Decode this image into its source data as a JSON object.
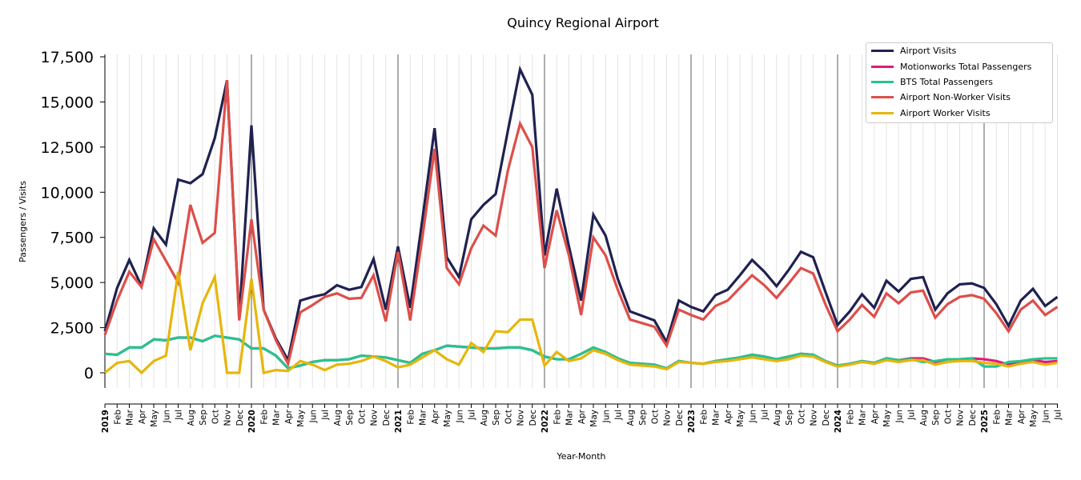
{
  "chart_data": {
    "type": "line",
    "title": "Quincy Regional Airport",
    "xlabel": "Year-Month",
    "ylabel": "Passengers / Visits",
    "ylim": [
      -1800,
      17700
    ],
    "yticks": [
      0,
      2500,
      5000,
      7500,
      10000,
      12500,
      15000,
      17500
    ],
    "ytick_labels": [
      "0",
      "2,500",
      "5,000",
      "7,500",
      "10,000",
      "12,500",
      "15,000",
      "17,500"
    ],
    "start": "2019-01",
    "month_labels": [
      "Jan",
      "Feb",
      "Mar",
      "Apr",
      "May",
      "Jun",
      "Jul",
      "Aug",
      "Sep",
      "Oct",
      "Nov",
      "Dec"
    ],
    "years": [
      "2019",
      "2020",
      "2021",
      "2022",
      "2023",
      "2024",
      "2025"
    ],
    "n_months": 79,
    "legend_position": "top-right",
    "series": [
      {
        "name": "Airport Visits",
        "color": "#1f2150",
        "values": [
          2300,
          4700,
          6250,
          4800,
          8000,
          7100,
          10700,
          10500,
          11000,
          13000,
          16200,
          3000,
          13700,
          3500,
          1900,
          700,
          4000,
          4200,
          4350,
          4850,
          4600,
          4750,
          6300,
          3500,
          7000,
          3600,
          8500,
          13550,
          6400,
          5300,
          8500,
          9300,
          9900,
          13400,
          16800,
          15400,
          6500,
          10200,
          7000,
          4000,
          8750,
          7600,
          5200,
          3400,
          3150,
          2900,
          1700,
          4000,
          3650,
          3400,
          4300,
          4600,
          5400,
          6250,
          5600,
          4800,
          5700,
          6700,
          6400,
          4500,
          2650,
          3400,
          4350,
          3600,
          5100,
          4500,
          5200,
          5300,
          3500,
          4400,
          4900,
          4950,
          4700,
          3800,
          2600,
          4000,
          4650,
          3700,
          4200
        ]
      },
      {
        "name": "Motionworks Total Passengers",
        "color": "#e0197d",
        "values": [
          1050,
          1000,
          1400,
          1400,
          1850,
          1800,
          1950,
          1950,
          1750,
          2050,
          1950,
          1850,
          1350,
          1350,
          950,
          250,
          400,
          600,
          700,
          700,
          750,
          950,
          900,
          850,
          700,
          550,
          1050,
          1250,
          1500,
          1450,
          1400,
          1350,
          1350,
          1400,
          1400,
          1250,
          900,
          750,
          750,
          1050,
          1400,
          1150,
          800,
          550,
          500,
          450,
          250,
          650,
          550,
          500,
          650,
          750,
          850,
          1000,
          900,
          750,
          900,
          1050,
          1000,
          650,
          400,
          500,
          650,
          550,
          800,
          700,
          800,
          800,
          600,
          750,
          750,
          800,
          750,
          650,
          450,
          550,
          700,
          600,
          650
        ]
      },
      {
        "name": "BTS Total Passengers",
        "color": "#26c48f",
        "values": [
          1050,
          1000,
          1400,
          1400,
          1850,
          1800,
          1950,
          1950,
          1750,
          2050,
          1950,
          1850,
          1350,
          1350,
          950,
          250,
          400,
          600,
          700,
          700,
          750,
          950,
          900,
          850,
          700,
          550,
          1050,
          1250,
          1500,
          1450,
          1400,
          1350,
          1350,
          1400,
          1400,
          1250,
          900,
          750,
          750,
          1050,
          1400,
          1150,
          800,
          550,
          500,
          450,
          250,
          650,
          550,
          500,
          650,
          750,
          850,
          1000,
          900,
          750,
          900,
          1050,
          1000,
          650,
          400,
          500,
          650,
          550,
          800,
          700,
          750,
          600,
          650,
          750,
          750,
          800,
          350,
          350,
          600,
          650,
          750,
          800,
          800
        ]
      },
      {
        "name": "Airport Non-Worker Visits",
        "color": "#dd4f4a",
        "values": [
          2100,
          4000,
          5600,
          4750,
          7400,
          6200,
          5000,
          9300,
          7200,
          7750,
          16200,
          2900,
          8500,
          3500,
          1800,
          500,
          3350,
          3750,
          4200,
          4400,
          4100,
          4150,
          5400,
          2850,
          6700,
          2900,
          7500,
          12400,
          5800,
          4900,
          6900,
          8150,
          7600,
          11200,
          13800,
          12500,
          5800,
          9000,
          6500,
          3200,
          7500,
          6500,
          4600,
          2950,
          2750,
          2550,
          1500,
          3500,
          3200,
          2950,
          3700,
          4000,
          4700,
          5400,
          4850,
          4150,
          4950,
          5800,
          5500,
          3800,
          2300,
          2950,
          3750,
          3100,
          4400,
          3850,
          4450,
          4550,
          3050,
          3800,
          4200,
          4300,
          4100,
          3300,
          2300,
          3500,
          4000,
          3200,
          3650
        ]
      },
      {
        "name": "Airport Worker Visits",
        "color": "#e6b60c",
        "values": [
          0,
          550,
          650,
          0,
          650,
          950,
          5600,
          1250,
          3850,
          5300,
          0,
          0,
          5200,
          0,
          150,
          100,
          650,
          450,
          150,
          450,
          500,
          650,
          900,
          650,
          300,
          450,
          850,
          1250,
          750,
          450,
          1650,
          1150,
          2300,
          2250,
          2950,
          2950,
          400,
          1150,
          650,
          800,
          1250,
          1050,
          700,
          450,
          400,
          350,
          200,
          600,
          550,
          500,
          600,
          650,
          750,
          850,
          750,
          650,
          750,
          950,
          900,
          600,
          350,
          450,
          600,
          500,
          700,
          600,
          700,
          700,
          450,
          600,
          650,
          650,
          550,
          500,
          350,
          500,
          600,
          450,
          550
        ]
      }
    ]
  }
}
